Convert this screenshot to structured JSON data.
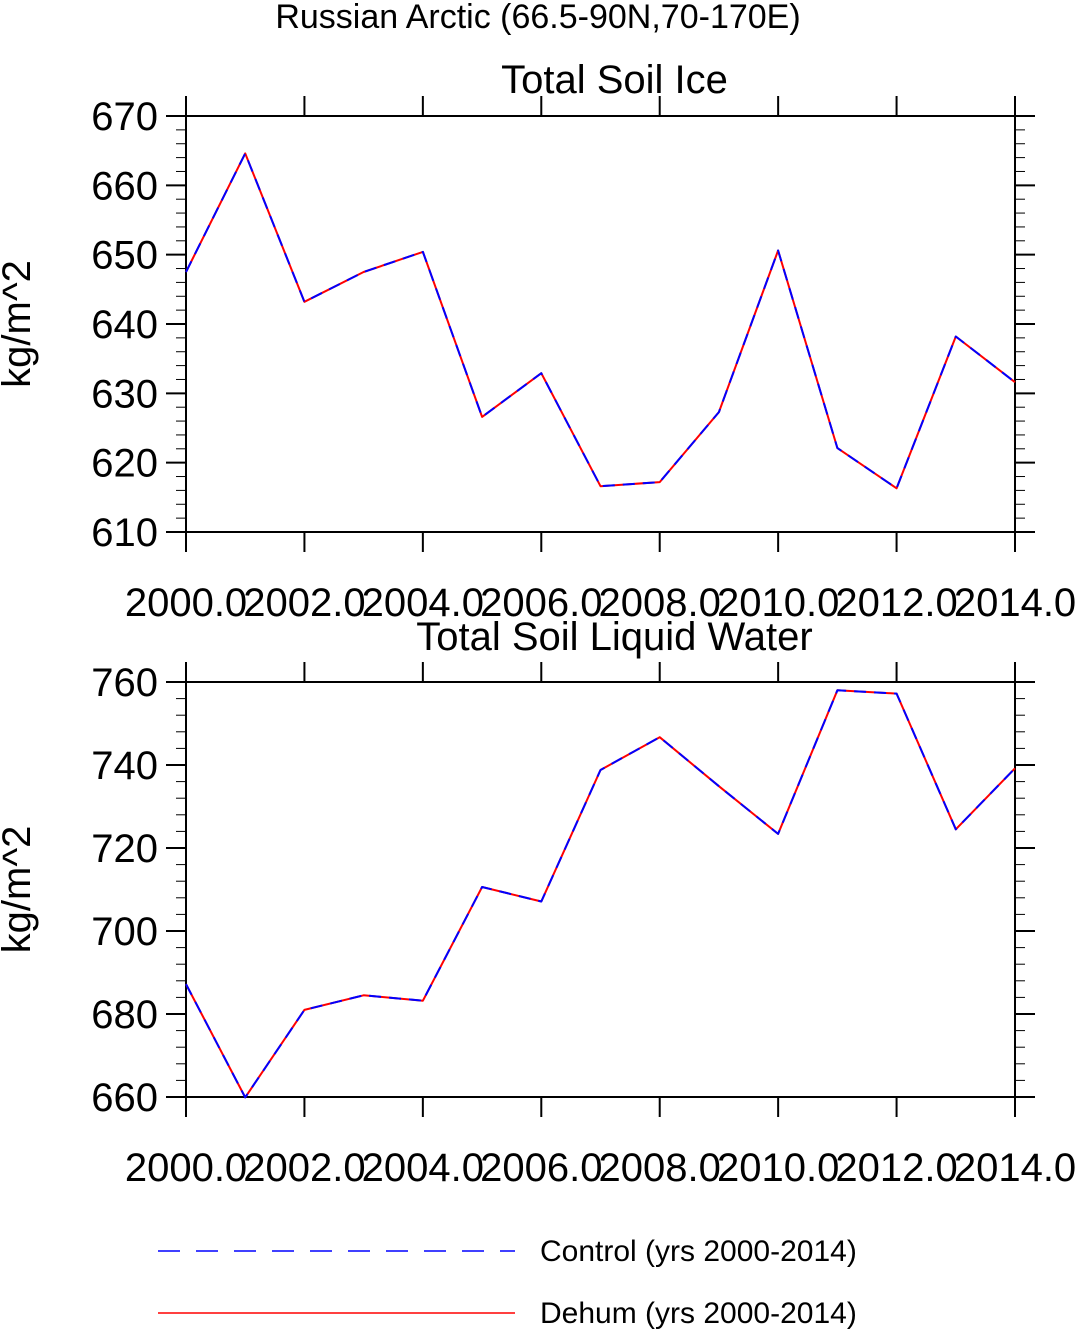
{
  "figure_title": "Russian Arctic (66.5-90N,70-170E)",
  "legend": {
    "control_label": "Control (yrs 2000-2014)",
    "dehum_label": "Dehum (yrs 2000-2014)",
    "control_color": "#0000ff",
    "dehum_color": "#ff0000"
  },
  "chart_data": [
    {
      "type": "line",
      "title": "Total Soil Ice",
      "ylabel": "kg/m^2",
      "xlabel": "",
      "xlim": [
        2000,
        2014
      ],
      "ylim": [
        610,
        670
      ],
      "x_ticks": [
        "2000.0",
        "2002.0",
        "2004.0",
        "2006.0",
        "2008.0",
        "2010.0",
        "2012.0",
        "2014.0"
      ],
      "y_ticks": [
        "610",
        "620",
        "630",
        "640",
        "650",
        "660",
        "670"
      ],
      "x": [
        2000,
        2001,
        2002,
        2003,
        2004,
        2005,
        2006,
        2007,
        2008,
        2009,
        2010,
        2011,
        2012,
        2013,
        2014
      ],
      "series": [
        {
          "name": "Control (yrs 2000-2014)",
          "values": [
            647.5,
            664.6,
            643.2,
            647.5,
            650.4,
            626.6,
            632.9,
            616.6,
            617.2,
            627.3,
            650.6,
            622.1,
            616.3,
            638.2,
            631.6
          ]
        },
        {
          "name": "Dehum (yrs 2000-2014)",
          "values": [
            647.5,
            664.6,
            643.2,
            647.5,
            650.4,
            626.6,
            632.9,
            616.6,
            617.2,
            627.3,
            650.6,
            622.1,
            616.3,
            638.2,
            631.6
          ]
        }
      ],
      "grid": false
    },
    {
      "type": "line",
      "title": "Total Soil Liquid Water",
      "ylabel": "kg/m^2",
      "xlabel": "",
      "xlim": [
        2000,
        2014
      ],
      "ylim": [
        660,
        760
      ],
      "x_ticks": [
        "2000.0",
        "2002.0",
        "2004.0",
        "2006.0",
        "2008.0",
        "2010.0",
        "2012.0",
        "2014.0"
      ],
      "y_ticks": [
        "660",
        "680",
        "700",
        "720",
        "740",
        "760"
      ],
      "x": [
        2000,
        2001,
        2002,
        2003,
        2004,
        2005,
        2006,
        2007,
        2008,
        2009,
        2010,
        2011,
        2012,
        2013,
        2014
      ],
      "series": [
        {
          "name": "Control (yrs 2000-2014)",
          "values": [
            687.2,
            659.9,
            681.0,
            684.5,
            683.2,
            710.6,
            707.1,
            738.8,
            746.7,
            734.9,
            723.4,
            758.0,
            757.2,
            724.5,
            739.2
          ]
        },
        {
          "name": "Dehum (yrs 2000-2014)",
          "values": [
            687.2,
            659.9,
            681.0,
            684.5,
            683.2,
            710.6,
            707.1,
            738.8,
            746.7,
            734.9,
            723.4,
            758.0,
            757.2,
            724.5,
            739.2
          ]
        }
      ],
      "grid": false
    }
  ]
}
